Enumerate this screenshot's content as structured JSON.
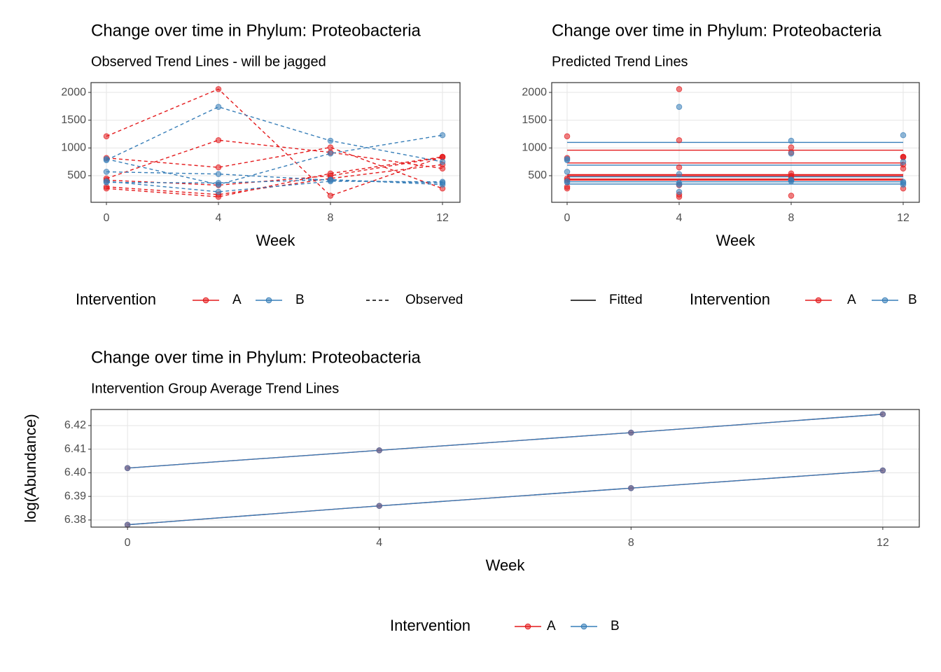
{
  "chart_data": [
    {
      "type": "line",
      "title": "Change over time in Phylum: Proteobacteria",
      "subtitle": "Observed Trend Lines - will be jagged",
      "x_label": "Week",
      "x": [
        0,
        4,
        8,
        12
      ],
      "xlim": [
        -0.55,
        12.625
      ],
      "ylim": [
        21,
        2177
      ],
      "xticks": [
        0,
        4,
        8,
        12
      ],
      "yticks": [
        500,
        1000,
        1500,
        2000
      ],
      "grid": true,
      "linestyle": "dashed",
      "line_legend": "Observed",
      "legend_title": "Intervention",
      "series": [
        {
          "name": "A",
          "color": "#e41a1c",
          "subjects": [
            {
              "values": [
                1210,
                2060,
                140,
                840
              ]
            },
            {
              "values": [
                450,
                1140,
                920,
                630
              ]
            },
            {
              "values": [
                820,
                650,
                1010,
                270
              ]
            },
            {
              "values": [
                420,
                330,
                500,
                830
              ]
            },
            {
              "values": [
                300,
                160,
                450,
                700
              ]
            },
            {
              "values": [
                270,
                120,
                540,
                840
              ]
            }
          ]
        },
        {
          "name": "B",
          "color": "#377eb8",
          "subjects": [
            {
              "values": [
                780,
                1740,
                1130,
                750
              ]
            },
            {
              "values": [
                800,
                340,
                900,
                1230
              ]
            },
            {
              "values": [
                570,
                530,
                420,
                370
              ]
            },
            {
              "values": [
                400,
                210,
                400,
                390
              ]
            },
            {
              "values": [
                380,
                370,
                430,
                340
              ]
            }
          ]
        }
      ]
    },
    {
      "type": "scatter",
      "title": "Change over time in Phylum: Proteobacteria",
      "subtitle": "Predicted Trend Lines",
      "x_label": "Week",
      "x": [
        0,
        4,
        8,
        12
      ],
      "xlim": [
        -0.55,
        12.575
      ],
      "ylim": [
        21,
        2177
      ],
      "xticks": [
        0,
        4,
        8,
        12
      ],
      "yticks": [
        500,
        1000,
        1500,
        2000
      ],
      "grid": true,
      "linestyle": "solid",
      "line_legend": "Fitted",
      "legend_title": "Intervention",
      "series": [
        {
          "name": "A",
          "color": "#e41a1c",
          "subjects": [
            {
              "values": [
                1210,
                2060,
                140,
                840
              ],
              "fitted": 960
            },
            {
              "values": [
                450,
                1140,
                920,
                630
              ],
              "fitted": 500
            },
            {
              "values": [
                820,
                650,
                1010,
                270
              ],
              "fitted": 730
            },
            {
              "values": [
                420,
                330,
                500,
                830
              ],
              "fitted": 520
            },
            {
              "values": [
                300,
                160,
                450,
                700
              ],
              "fitted": 440
            },
            {
              "values": [
                270,
                120,
                540,
                840
              ],
              "fitted": 420
            }
          ]
        },
        {
          "name": "B",
          "color": "#377eb8",
          "subjects": [
            {
              "values": [
                780,
                1740,
                1130,
                750
              ],
              "fitted": 1100
            },
            {
              "values": [
                800,
                340,
                900,
                1230
              ],
              "fitted": 690
            },
            {
              "values": [
                570,
                530,
                420,
                370
              ],
              "fitted": 480
            },
            {
              "values": [
                400,
                210,
                400,
                390
              ],
              "fitted": 350
            },
            {
              "values": [
                380,
                370,
                430,
                340
              ],
              "fitted": 390
            }
          ]
        }
      ]
    },
    {
      "type": "line",
      "title": "Change over time in Phylum: Proteobacteria",
      "subtitle": "Intervention Group Average Trend Lines",
      "x_label": "Week",
      "y_label": "log(Abundance)",
      "x": [
        0,
        4,
        8,
        12
      ],
      "xlim": [
        -0.58,
        12.58
      ],
      "ylim": [
        6.377,
        6.4268
      ],
      "xticks": [
        0,
        4,
        8,
        12
      ],
      "yticks": [
        6.38,
        6.39,
        {
          "value": 6.4,
          "label": "6.40"
        },
        6.41,
        6.42
      ],
      "grid": true,
      "linestyle": "solid",
      "legend_title": "Intervention",
      "series": [
        {
          "name": "A",
          "color": "#e41a1c",
          "subjects": [
            {
              "values": [
                6.402,
                6.4095,
                6.417,
                6.4248
              ]
            },
            {
              "values": [
                6.378,
                6.386,
                6.3935,
                6.401
              ]
            }
          ]
        },
        {
          "name": "B",
          "color": "#377eb8",
          "subjects": [
            {
              "values": [
                6.402,
                6.4095,
                6.417,
                6.4248
              ]
            },
            {
              "values": [
                6.378,
                6.386,
                6.3935,
                6.401
              ]
            }
          ]
        }
      ]
    }
  ]
}
